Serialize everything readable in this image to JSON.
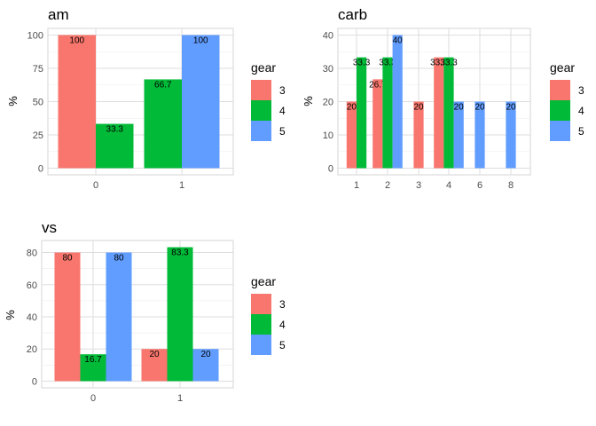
{
  "colors": {
    "3": "#F8766D",
    "4": "#00BA38",
    "5": "#619CFF"
  },
  "legend": {
    "title": "gear",
    "entries": [
      "3",
      "4",
      "5"
    ]
  },
  "chart_data": [
    {
      "type": "bar",
      "title": "am",
      "xlabel": "",
      "ylabel": "%",
      "ylim": [
        0,
        100
      ],
      "yticks": [
        0,
        25,
        50,
        75,
        100
      ],
      "ytick_labels": [
        "0",
        "25",
        "50",
        "75",
        "100"
      ],
      "categories": [
        "0",
        "1"
      ],
      "grid": true,
      "legend_position": "right",
      "bars": [
        {
          "cat": "0",
          "gear": "3",
          "value": 100,
          "label": "100"
        },
        {
          "cat": "0",
          "gear": "4",
          "value": 33.3,
          "label": "33.3"
        },
        {
          "cat": "1",
          "gear": "4",
          "value": 66.7,
          "label": "66.7"
        },
        {
          "cat": "1",
          "gear": "5",
          "value": 100,
          "label": "100"
        }
      ]
    },
    {
      "type": "bar",
      "title": "carb",
      "xlabel": "",
      "ylabel": "%",
      "ylim": [
        0,
        40
      ],
      "yticks": [
        0,
        10,
        20,
        30,
        40
      ],
      "ytick_labels": [
        "0",
        "10",
        "20",
        "30",
        "40"
      ],
      "categories": [
        "1",
        "2",
        "3",
        "4",
        "6",
        "8"
      ],
      "grid": true,
      "legend_position": "right",
      "bars": [
        {
          "cat": "1",
          "gear": "3",
          "value": 20,
          "label": "20"
        },
        {
          "cat": "1",
          "gear": "4",
          "value": 33.3,
          "label": "33.3"
        },
        {
          "cat": "2",
          "gear": "3",
          "value": 26.7,
          "label": "26.7"
        },
        {
          "cat": "2",
          "gear": "4",
          "value": 33.3,
          "label": "33.3"
        },
        {
          "cat": "2",
          "gear": "5",
          "value": 40,
          "label": "40"
        },
        {
          "cat": "3",
          "gear": "3",
          "value": 20,
          "label": "20"
        },
        {
          "cat": "4",
          "gear": "3",
          "value": 33.3,
          "label": "33.3"
        },
        {
          "cat": "4",
          "gear": "4",
          "value": 33.3,
          "label": "33.3"
        },
        {
          "cat": "4",
          "gear": "5",
          "value": 20,
          "label": "20"
        },
        {
          "cat": "6",
          "gear": "5",
          "value": 20,
          "label": "20"
        },
        {
          "cat": "8",
          "gear": "5",
          "value": 20,
          "label": "20"
        }
      ]
    },
    {
      "type": "bar",
      "title": "vs",
      "xlabel": "",
      "ylabel": "%",
      "ylim": [
        0,
        83.3
      ],
      "yticks": [
        0,
        20,
        40,
        60,
        80
      ],
      "ytick_labels": [
        "0",
        "20",
        "40",
        "60",
        "80"
      ],
      "categories": [
        "0",
        "1"
      ],
      "grid": true,
      "legend_position": "right",
      "bars": [
        {
          "cat": "0",
          "gear": "3",
          "value": 80,
          "label": "80"
        },
        {
          "cat": "0",
          "gear": "4",
          "value": 16.7,
          "label": "16.7"
        },
        {
          "cat": "0",
          "gear": "5",
          "value": 80,
          "label": "80"
        },
        {
          "cat": "1",
          "gear": "3",
          "value": 20,
          "label": "20"
        },
        {
          "cat": "1",
          "gear": "4",
          "value": 83.3,
          "label": "83.3"
        },
        {
          "cat": "1",
          "gear": "5",
          "value": 20,
          "label": "20"
        }
      ]
    }
  ]
}
